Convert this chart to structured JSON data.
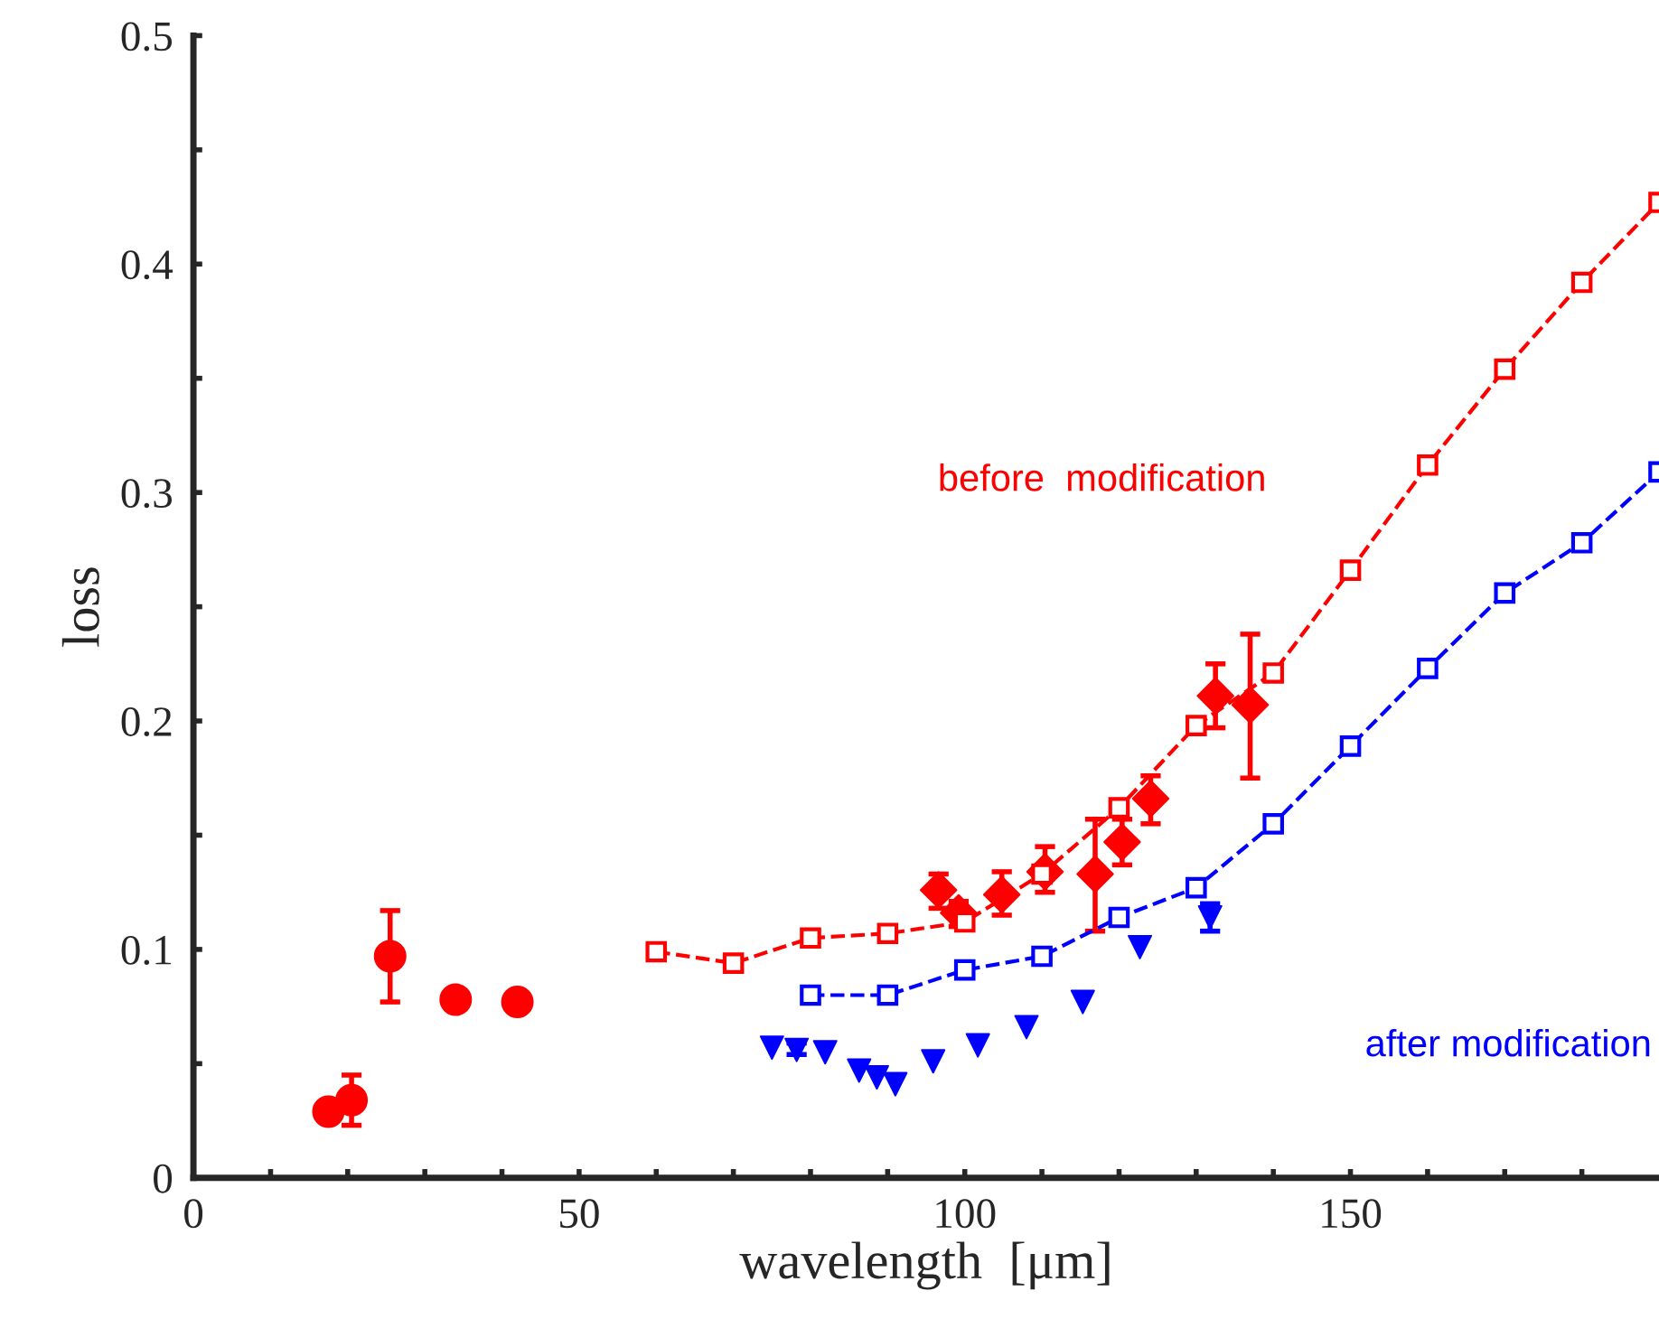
{
  "chart_data": {
    "type": "scatter",
    "xlabel": "wavelength  [μm]",
    "ylabel": "loss",
    "xlim": [
      0,
      190
    ],
    "ylim": [
      0,
      0.5
    ],
    "xticks": [
      0,
      {
        "value": 10,
        "label": null
      },
      {
        "value": 20,
        "label": null
      },
      {
        "value": 30,
        "label": null
      },
      {
        "value": 40,
        "label": null
      },
      50,
      {
        "value": 60,
        "label": null
      },
      {
        "value": 70,
        "label": null
      },
      {
        "value": 80,
        "label": null
      },
      {
        "value": 90,
        "label": null
      },
      100,
      {
        "value": 110,
        "label": null
      },
      {
        "value": 120,
        "label": null
      },
      {
        "value": 130,
        "label": null
      },
      {
        "value": 140,
        "label": null
      },
      150,
      {
        "value": 160,
        "label": null
      },
      {
        "value": 170,
        "label": null
      },
      {
        "value": 180,
        "label": null
      }
    ],
    "yticks": [
      0,
      {
        "value": 0.05,
        "label": null
      },
      0.1,
      {
        "value": 0.15,
        "label": null
      },
      0.2,
      {
        "value": 0.25,
        "label": null
      },
      0.3,
      {
        "value": 0.35,
        "label": null
      },
      0.4,
      {
        "value": 0.45,
        "label": null
      },
      0.5
    ],
    "grid": false,
    "legend": false,
    "series": [
      {
        "type": "line",
        "name": "before  modification",
        "color": "#ff0000",
        "marker": "square",
        "line_style": "dashed",
        "x": [
          60,
          70,
          80,
          90,
          100,
          110,
          120,
          130,
          140,
          150,
          160,
          170,
          180,
          190
        ],
        "values": [
          0.099,
          0.094,
          0.105,
          0.107,
          0.112,
          0.133,
          0.162,
          0.198,
          0.221,
          0.266,
          0.312,
          0.354,
          0.392,
          0.427
        ]
      },
      {
        "type": "line",
        "name": "after modification",
        "color": "#0000ff",
        "marker": "square",
        "line_style": "dashed",
        "x": [
          80,
          90,
          100,
          110,
          120,
          130,
          140,
          150,
          160,
          170,
          180,
          190
        ],
        "values": [
          0.08,
          0.08,
          0.091,
          0.097,
          0.114,
          0.127,
          0.155,
          0.189,
          0.223,
          0.256,
          0.278,
          0.309
        ]
      },
      {
        "color": "#ff0000",
        "marker": "circle",
        "x": [
          17.5,
          20.5,
          25.5,
          34,
          42
        ],
        "values": [
          0.029,
          0.034,
          0.097,
          0.078,
          0.077
        ],
        "errors": [
          null,
          [
            0.023,
            0.045
          ],
          [
            0.077,
            0.117
          ],
          null,
          null
        ]
      },
      {
        "color": "#ff0000",
        "marker": "diamond",
        "x": [
          96.6,
          99.2,
          104.8,
          110.4,
          116.9,
          120.4,
          124.1,
          132.5,
          137
        ],
        "values": [
          0.126,
          0.116,
          0.124,
          0.134,
          0.133,
          0.147,
          0.166,
          0.211,
          0.207
        ],
        "errors": [
          [
            0.118,
            0.133
          ],
          [
            0.11,
            0.121
          ],
          [
            0.115,
            0.134
          ],
          [
            0.125,
            0.145
          ],
          [
            0.108,
            0.157
          ],
          [
            0.137,
            0.157
          ],
          [
            0.155,
            0.176
          ],
          [
            0.197,
            0.225
          ],
          [
            0.175,
            0.238
          ]
        ]
      },
      {
        "color": "#0000ff",
        "marker": "triangle",
        "x": [
          75,
          78.2,
          81.9,
          86.3,
          88.6,
          91,
          95.9,
          101.7,
          108,
          115.3,
          122.7,
          131.8
        ],
        "values": [
          0.057,
          0.056,
          0.055,
          0.047,
          0.044,
          0.041,
          0.051,
          0.058,
          0.066,
          0.077,
          0.101,
          0.114
        ],
        "errors": [
          null,
          [
            0.054,
            0.059
          ],
          null,
          null,
          null,
          null,
          null,
          null,
          null,
          null,
          null,
          [
            0.108,
            0.12
          ]
        ]
      }
    ]
  }
}
